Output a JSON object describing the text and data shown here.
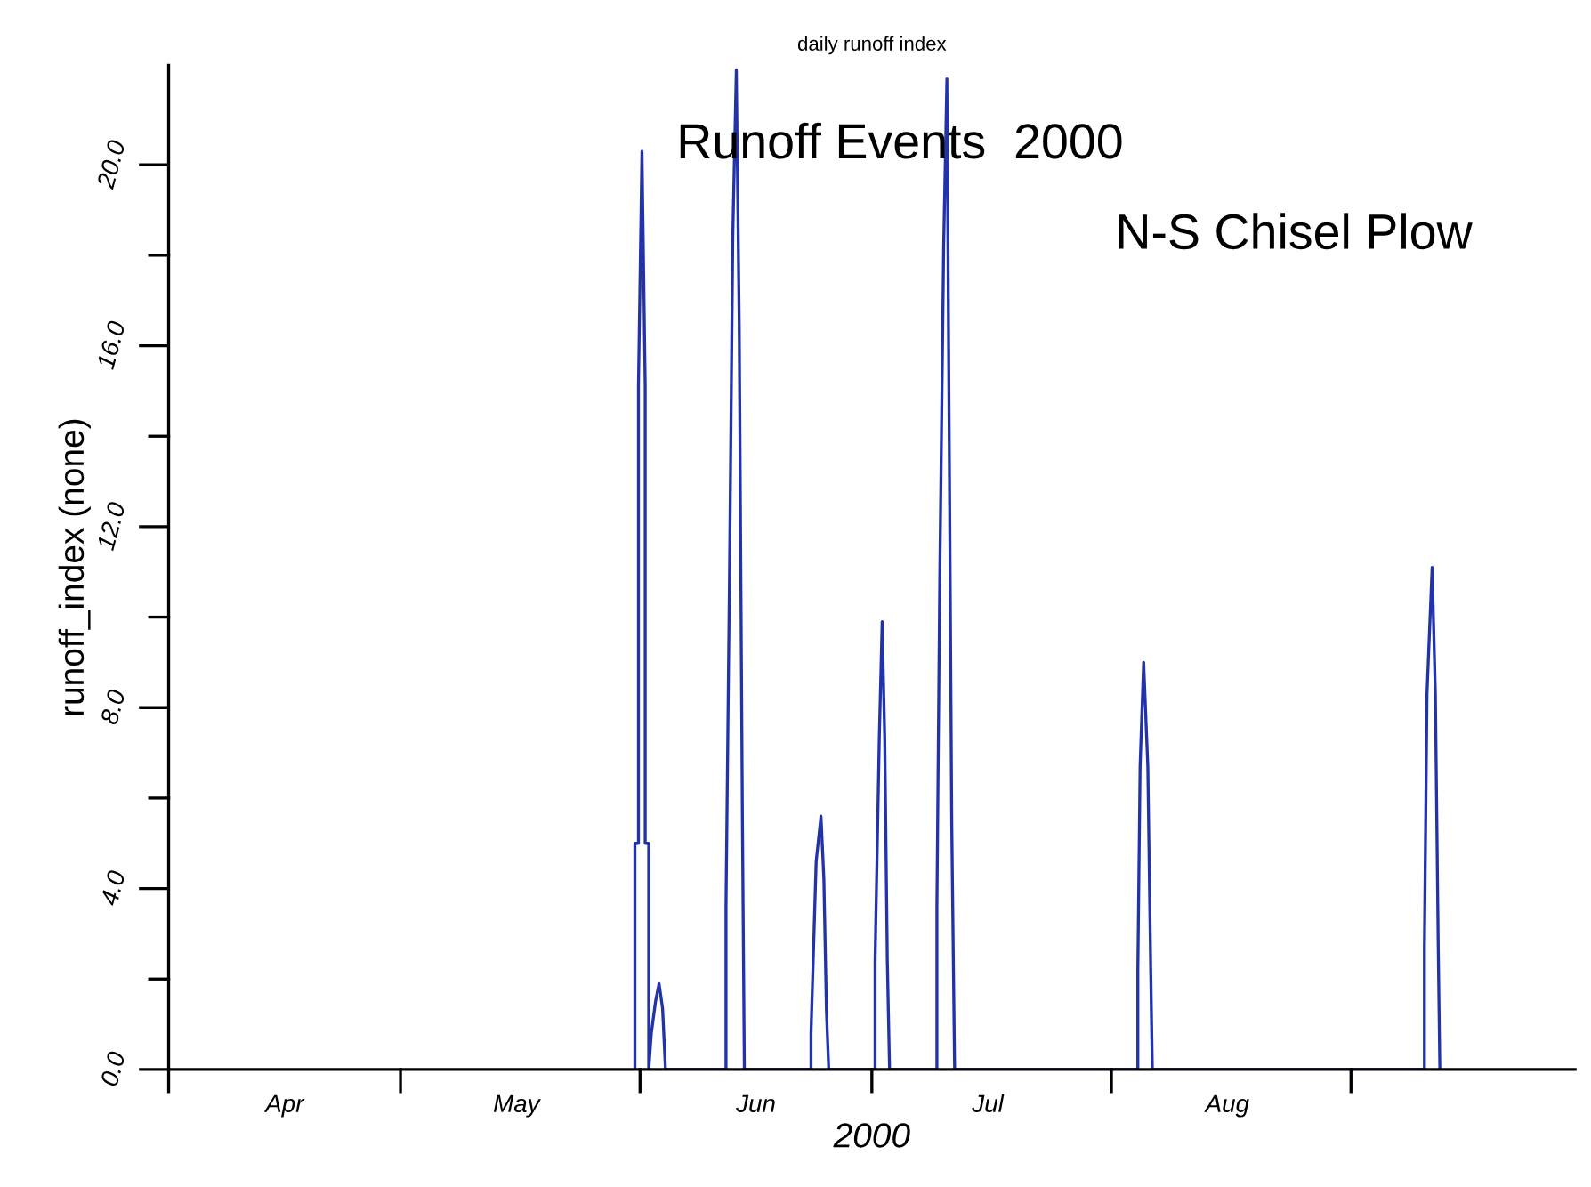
{
  "chart_data": {
    "type": "line",
    "title": "daily runoff index",
    "xlabel": "2000",
    "ylabel": "runoff_index (none)",
    "annotations": [
      "Runoff Events  2000",
      "N-S Chisel Plow"
    ],
    "x": [
      "2000-05-31T08:00",
      "2000-05-31T08:00",
      "2000-05-31T19:00",
      "2000-05-31T19:00",
      "2000-06-01T06:00",
      "2000-06-01T16:00",
      "2000-06-01T16:00",
      "2000-06-02T03:00",
      "2000-06-02T03:00",
      "2000-06-02T11:00",
      "2000-06-03T00:00",
      "2000-06-03T11:00",
      "2000-06-03T22:00",
      "2000-06-04T07:00",
      "2000-06-12T03:00",
      "2000-06-12T03:00",
      "2000-06-12T14:00",
      "2000-06-13T00:00",
      "2000-06-13T11:00",
      "2000-06-13T20:00",
      "2000-06-14T06:00",
      "2000-06-14T06:00",
      "2000-06-14T12:00",
      "2000-06-23T03:00",
      "2000-06-23T03:00",
      "2000-06-23T11:00",
      "2000-06-23T19:00",
      "2000-06-24T10:00",
      "2000-06-24T19:00",
      "2000-06-25T03:00",
      "2000-06-25T10:00",
      "2000-07-01T10:00",
      "2000-07-01T10:00",
      "2000-07-01T23:00",
      "2000-07-02T08:00",
      "2000-07-02T16:00",
      "2000-07-03T00:00",
      "2000-07-03T07:00",
      "2000-07-09T10:00",
      "2000-07-09T10:00",
      "2000-07-09T19:00",
      "2000-07-10T07:00",
      "2000-07-10T17:00",
      "2000-07-10T22:00",
      "2000-07-11T08:00",
      "2000-07-11T08:00",
      "2000-07-11T17:00",
      "2000-08-04T10:00",
      "2000-08-04T10:00",
      "2000-08-04T17:00",
      "2000-08-05T04:00",
      "2000-08-05T17:00",
      "2000-08-06T02:00",
      "2000-08-06T07:00",
      "2000-09-10T12:00",
      "2000-09-10T12:00",
      "2000-09-10T20:00",
      "2000-09-11T12:00",
      "2000-09-11T22:00",
      "2000-09-12T07:00",
      "2000-09-12T12:00"
    ],
    "series": [
      {
        "color": "#2233aa",
        "values": [
          0,
          5.0,
          5.0,
          15.1,
          20.3,
          15.1,
          5.0,
          5.0,
          0,
          0.8,
          1.5,
          1.9,
          1.35,
          0,
          0,
          3.6,
          11.0,
          18.4,
          22.1,
          16.5,
          5.5,
          5.5,
          0,
          0,
          0.8,
          2.7,
          4.6,
          5.6,
          4.2,
          1.3,
          0,
          0,
          2.4,
          7.3,
          9.9,
          7.3,
          2.4,
          0,
          0,
          3.6,
          10.9,
          18.2,
          21.9,
          16.4,
          5.5,
          5.5,
          0,
          0,
          2.2,
          6.7,
          9.0,
          6.7,
          2.2,
          0,
          0,
          2.7,
          8.3,
          11.1,
          8.3,
          2.7,
          0
        ]
      }
    ],
    "xlim": [
      "2000-04-01",
      "2000-09-30"
    ],
    "xticks": [
      {
        "value": "2000-04-01",
        "label": null
      },
      {
        "value": "2000-04-16",
        "label": "Apr"
      },
      {
        "value": "2000-05-01",
        "label": null
      },
      {
        "value": "2000-05-16",
        "label": "May"
      },
      {
        "value": "2000-06-01",
        "label": null
      },
      {
        "value": "2000-06-16",
        "label": "Jun"
      },
      {
        "value": "2000-07-01",
        "label": null
      },
      {
        "value": "2000-07-16",
        "label": "Jul"
      },
      {
        "value": "2000-08-01",
        "label": null
      },
      {
        "value": "2000-08-16",
        "label": "Aug"
      },
      {
        "value": "2000-09-01",
        "label": null
      }
    ],
    "ylim": [
      0,
      22.2
    ],
    "yticks": [
      {
        "value": 0,
        "label": "0.0"
      },
      {
        "value": 2,
        "label": null
      },
      {
        "value": 4,
        "label": "4.0"
      },
      {
        "value": 6,
        "label": null
      },
      {
        "value": 8,
        "label": "8.0"
      },
      {
        "value": 10,
        "label": null
      },
      {
        "value": 12,
        "label": "12.0"
      },
      {
        "value": 14,
        "label": null
      },
      {
        "value": 16,
        "label": "16.0"
      },
      {
        "value": 18,
        "label": null
      },
      {
        "value": 20,
        "label": "20.0"
      }
    ],
    "grid": false,
    "marker": "none",
    "line_style": "solid"
  }
}
